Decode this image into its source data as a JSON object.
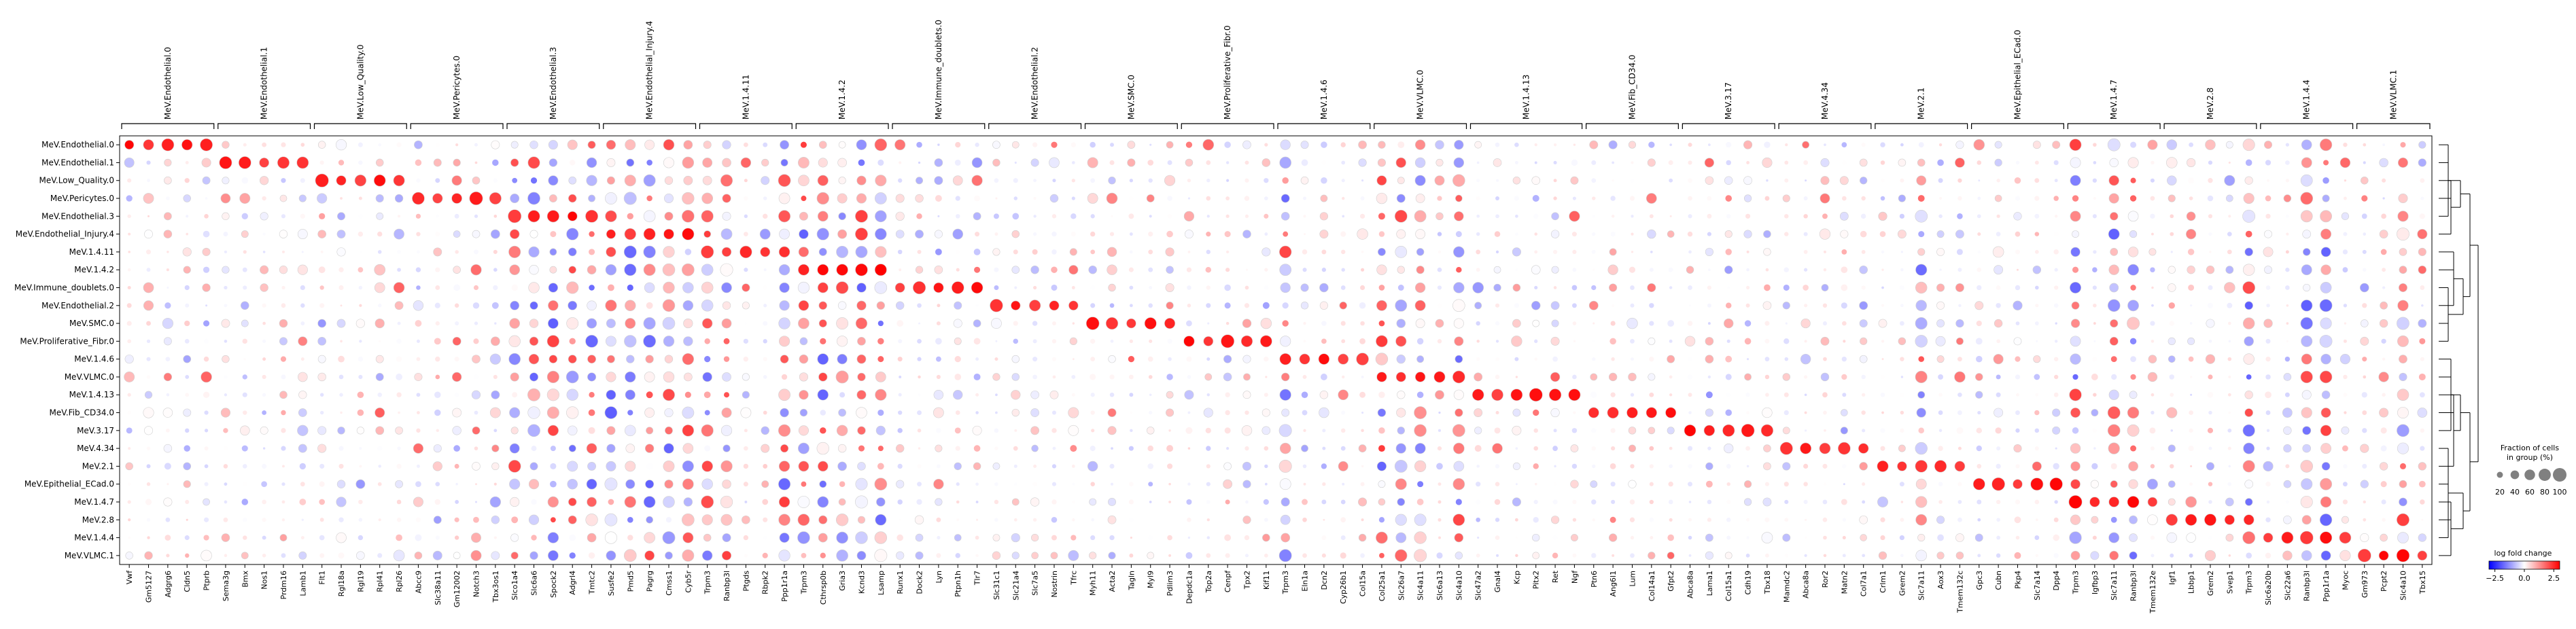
{
  "chart_data": {
    "type": "dotplot",
    "title": "",
    "xlabel": "",
    "ylabel": "",
    "rows": [
      "MeV.Endothelial.0",
      "MeV.Endothelial.1",
      "MeV.Low_Quality.0",
      "MeV.Pericytes.0",
      "MeV.Endothelial.3",
      "MeV.Endothelial_Injury.4",
      "MeV.1.4.11",
      "MeV.1.4.2",
      "MeV.Immune_doublets.0",
      "MeV.Endothelial.2",
      "MeV.SMC.0",
      "MeV.Proliferative_Fibr.0",
      "MeV.1.4.6",
      "MeV.VLMC.0",
      "MeV.1.4.13",
      "MeV.Fib_CD34.0",
      "MeV.3.17",
      "MeV.4.34",
      "MeV.2.1",
      "MeV.Epithelial_ECad.0",
      "MeV.1.4.7",
      "MeV.2.8",
      "MeV.1.4.4",
      "MeV.VLMC.1"
    ],
    "genes": [
      "Vwf",
      "Gm5127",
      "Adgrg6",
      "Cldn5",
      "Ptprb",
      "Sema3g",
      "Bmx",
      "Nos1",
      "Prdm16",
      "Lamb1",
      "Flt1",
      "Rgl18a",
      "Rgl19",
      "Rpl41",
      "Rpl26",
      "Abcc9",
      "Slc38a11",
      "Gm12002",
      "Notch3",
      "Tbx3os1",
      "Slco1a4",
      "Slc6a6",
      "Spock2",
      "Adgrl4",
      "Tmtc2",
      "Susfe2",
      "Pmd5",
      "Pagrg",
      "Cmss1",
      "Cyb5r",
      "Trpm3",
      "Ranbp3l",
      "Ptgds",
      "Rbpk2",
      "Ppp1r1a",
      "Trpm3",
      "Cthrsp0b",
      "Gria3",
      "Kcnd3",
      "Lsamp",
      "Runx1",
      "Dock2",
      "Lyn",
      "Ptpn1h",
      "Tlr7",
      "Slc31c1",
      "Slc21a4",
      "Slc7a5",
      "Nostrin",
      "Tfrc",
      "Myh11",
      "Acta2",
      "Tagln",
      "Myl9",
      "Pdlim3",
      "Depdc1a",
      "Top2a",
      "Cenpf",
      "Tpx2",
      "Kif11",
      "Trpm3",
      "Eln1a",
      "Dcn2",
      "Cyp26b1",
      "Col15a",
      "Col25a1",
      "Slc26a7",
      "Slc4a11",
      "Slc6a13",
      "Slc4a10",
      "Slc47a2",
      "Gnal4",
      "Kcp",
      "Pitx2",
      "Ret",
      "Ngf",
      "Ptn6",
      "Ang6l1",
      "Lum",
      "Col14a1",
      "Gfpt2",
      "Abca8a",
      "Lama1",
      "Col15a1",
      "Cdh19",
      "Tbx18",
      "Mamdc2",
      "Abca8a",
      "Ror2",
      "Matn2",
      "Col7a1",
      "Crlm1",
      "Grem2",
      "Slc7a11",
      "Aox3",
      "Tmem132c",
      "Gpc3",
      "Cubn",
      "Pkp4",
      "Slc7a14",
      "Dpp4",
      "Trpm3",
      "Igfbp3",
      "Slc7a11",
      "Ranbp3l",
      "Tmem132e",
      "Igf1",
      "Lbbp1",
      "Grem2",
      "Svep1",
      "Trpm3",
      "Slc6a20b",
      "Slc22a6",
      "Ranbp3l",
      "Ppp1r1a",
      "Myoc",
      "Gm973",
      "Pcpt2",
      "Slc4a10",
      "Tbx15"
    ],
    "group_labels": [
      "MeV.Endothelial.0",
      "MeV.Endothelial.1",
      "MeV.Low_Quality.0",
      "MeV.Pericytes.0",
      "MeV.Endothelial.3",
      "MeV.Endothelial_Injury.4",
      "MeV.1.4.11",
      "MeV.1.4.2",
      "MeV.Immune_doublets.0",
      "MeV.Endothelial.2",
      "MeV.SMC.0",
      "MeV.Proliferative_Fibr.0",
      "MeV.1.4.6",
      "MeV.VLMC.0",
      "MeV.1.4.13",
      "MeV.Fib_CD34.0",
      "MeV.3.17",
      "MeV.4.34",
      "MeV.2.1",
      "MeV.Epithelial_ECad.0",
      "MeV.1.4.7",
      "MeV.2.8",
      "MeV.1.4.4",
      "MeV.VLMC.1"
    ],
    "group_sizes": [
      5,
      5,
      5,
      5,
      5,
      5,
      5,
      5,
      5,
      5,
      5,
      5,
      5,
      5,
      6,
      5,
      5,
      5,
      5,
      5,
      5,
      5,
      5,
      4
    ],
    "size_legend": {
      "title_line1": "Fraction of cells",
      "title_line2": "in group (%)",
      "values": [
        20,
        40,
        60,
        80,
        100
      ],
      "tick_labels": [
        "20",
        "40",
        "60",
        "80",
        "100"
      ]
    },
    "color_legend": {
      "title": "log fold change",
      "range": [
        -3,
        3
      ],
      "ticks": [
        -2.5,
        0.0,
        2.5
      ],
      "tick_labels": [
        "−2.5",
        "0.0",
        "2.5"
      ],
      "colormap": "bwr"
    },
    "dendrogram": "right"
  }
}
